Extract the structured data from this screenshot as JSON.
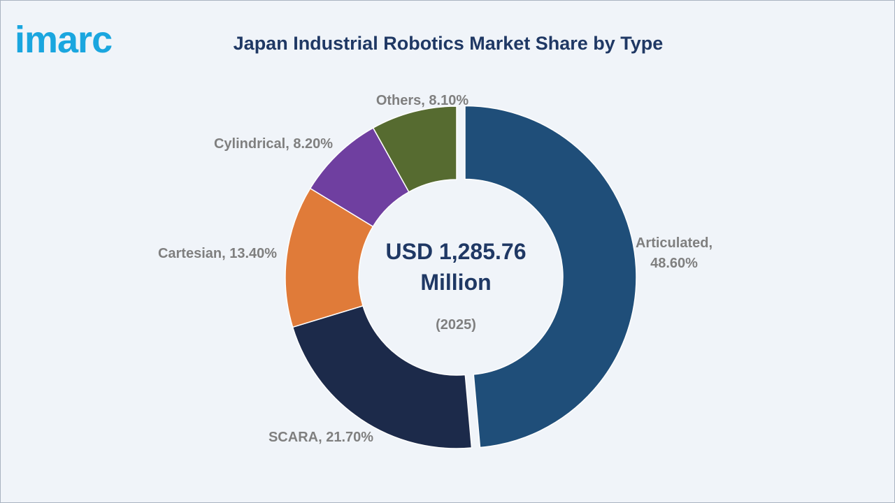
{
  "brand": {
    "logo_text": "imarc",
    "logo_color": "#1aa6df"
  },
  "chart_data": {
    "type": "pie",
    "title": "Japan Industrial Robotics Market Share by Type",
    "center_value": "USD 1,285.76",
    "center_unit": "Million",
    "center_year": "(2025)",
    "slices": [
      {
        "label_line1": "Articulated,",
        "label_line2": "48.60%",
        "value": 48.6,
        "color": "#1f4e79"
      },
      {
        "label_line1": "SCARA, 21.70%",
        "label_line2": "",
        "value": 21.7,
        "color": "#1c2a4a"
      },
      {
        "label_line1": "Cartesian, 13.40%",
        "label_line2": "",
        "value": 13.4,
        "color": "#e07b39"
      },
      {
        "label_line1": "Cylindrical, 8.20%",
        "label_line2": "",
        "value": 8.2,
        "color": "#6f3fa0"
      },
      {
        "label_line1": "Others, 8.10%",
        "label_line2": "",
        "value": 8.1,
        "color": "#566b30"
      }
    ],
    "exploded_slice": "Articulated,",
    "legend": "none"
  }
}
